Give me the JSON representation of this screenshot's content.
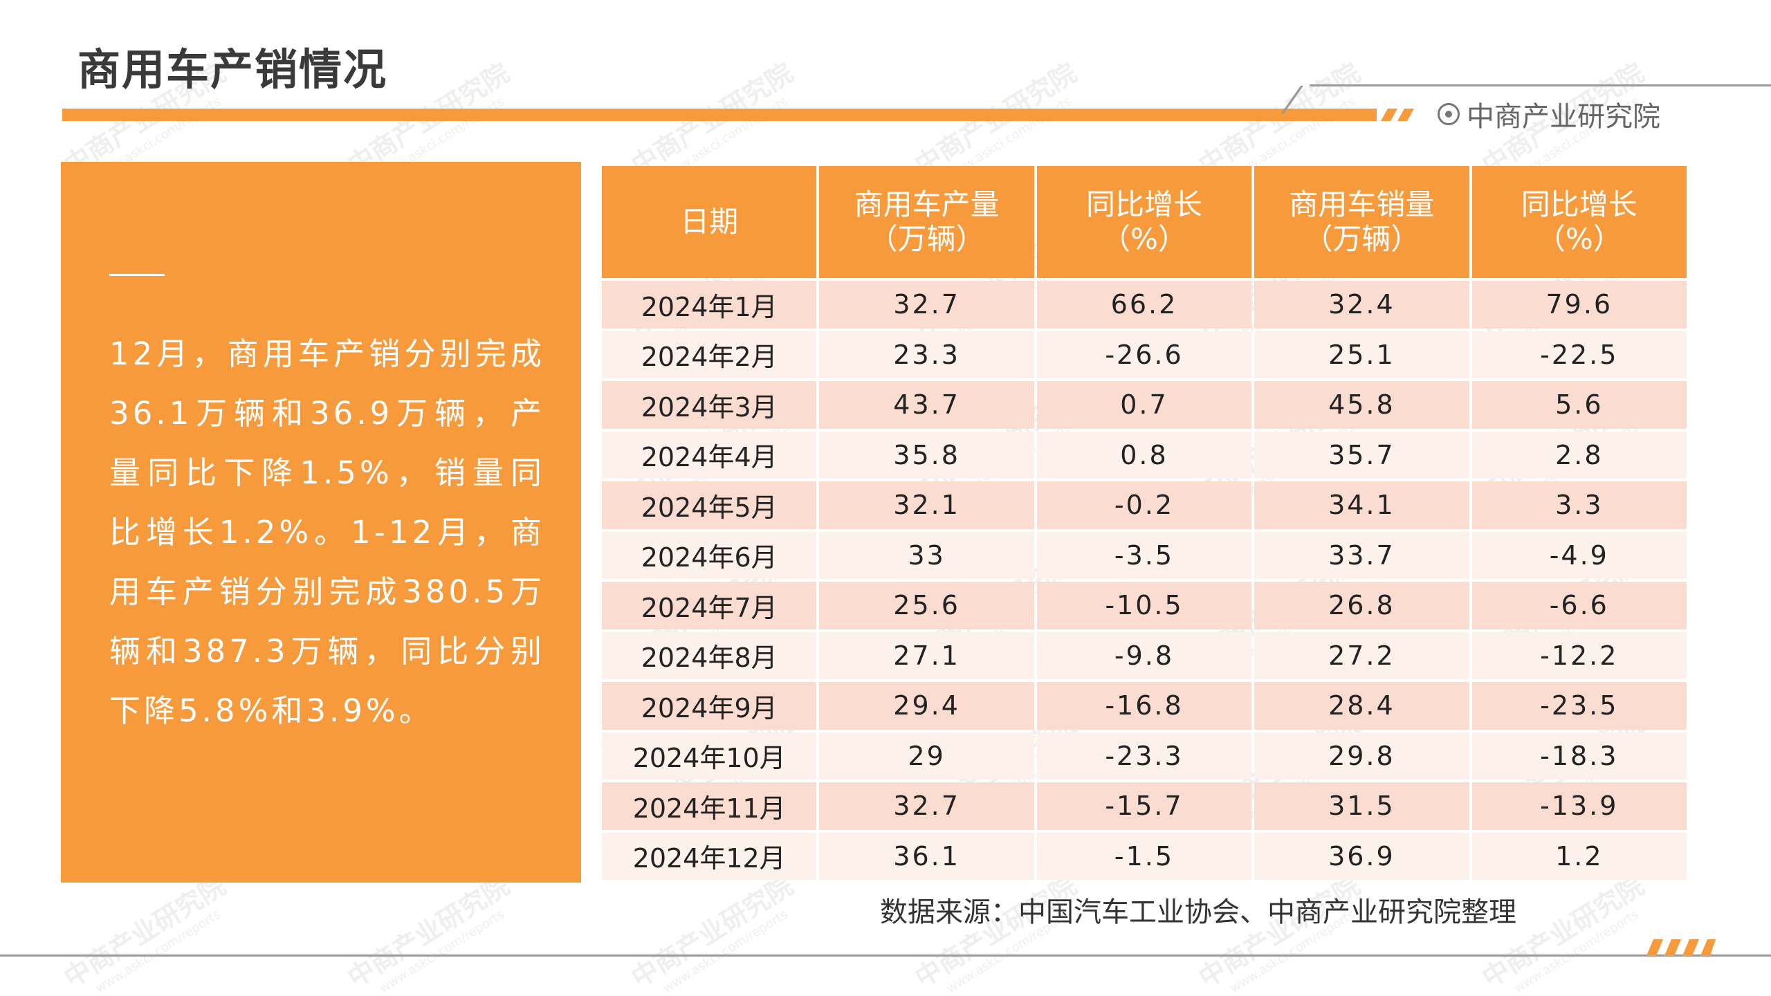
{
  "header": {
    "title": "商用车产销情况",
    "brand": "中商产业研究院",
    "brand_icon": "target-circle-icon"
  },
  "summary": {
    "text": "12月，商用车产销分别完成36.1万辆和36.9万辆，产量同比下降1.5%，销量同比增长1.2%。1-12月，商用车产销分别完成380.5万辆和387.3万辆，同比分别下降5.8%和3.9%。"
  },
  "table": {
    "headers": [
      [
        "日期"
      ],
      [
        "商用车产量",
        "（万辆）"
      ],
      [
        "同比增长",
        "（%）"
      ],
      [
        "商用车销量",
        "（万辆）"
      ],
      [
        "同比增长",
        "（%）"
      ]
    ],
    "rows": [
      [
        "2024年1月",
        "32.7",
        "66.2",
        "32.4",
        "79.6"
      ],
      [
        "2024年2月",
        "23.3",
        "-26.6",
        "25.1",
        "-22.5"
      ],
      [
        "2024年3月",
        "43.7",
        "0.7",
        "45.8",
        "5.6"
      ],
      [
        "2024年4月",
        "35.8",
        "0.8",
        "35.7",
        "2.8"
      ],
      [
        "2024年5月",
        "32.1",
        "-0.2",
        "34.1",
        "3.3"
      ],
      [
        "2024年6月",
        "33",
        "-3.5",
        "33.7",
        "-4.9"
      ],
      [
        "2024年7月",
        "25.6",
        "-10.5",
        "26.8",
        "-6.6"
      ],
      [
        "2024年8月",
        "27.1",
        "-9.8",
        "27.2",
        "-12.2"
      ],
      [
        "2024年9月",
        "29.4",
        "-16.8",
        "28.4",
        "-23.5"
      ],
      [
        "2024年10月",
        "29",
        "-23.3",
        "29.8",
        "-18.3"
      ],
      [
        "2024年11月",
        "32.7",
        "-15.7",
        "31.5",
        "-13.9"
      ],
      [
        "2024年12月",
        "36.1",
        "-1.5",
        "36.9",
        "1.2"
      ]
    ]
  },
  "footer": {
    "source": "数据来源：中国汽车工业协会、中商产业研究院整理"
  },
  "watermark": {
    "text": "中商产业研究院",
    "url": "www.askci.com/reports"
  },
  "colors": {
    "accent": "#F79A3B",
    "row_odd": "#FADCD0",
    "row_even": "#FDF1EC"
  }
}
